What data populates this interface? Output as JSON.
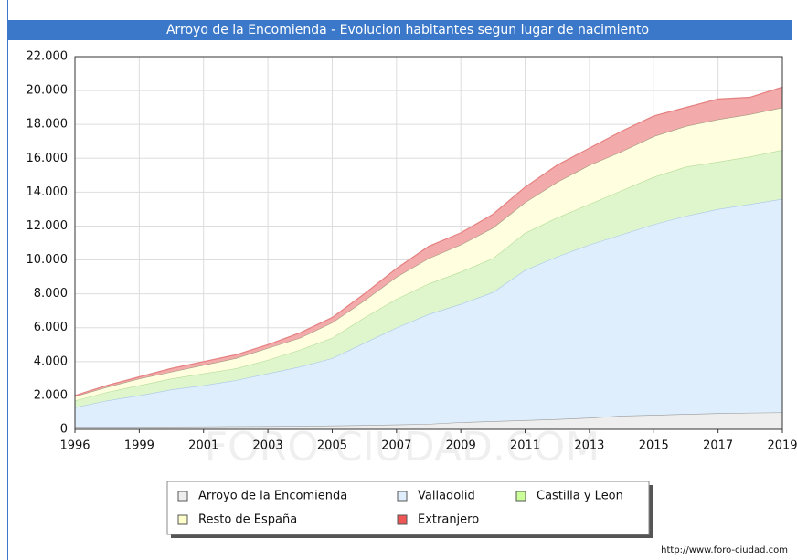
{
  "chart_data": {
    "type": "stacked_area",
    "title": "Arroyo de la Encomienda - Evolucion habitantes segun lugar de nacimiento",
    "watermark": "FORO-CIUDAD.COM",
    "source": "http://www.foro-ciudad.com",
    "categories": [
      "1996",
      null,
      "1999",
      null,
      "2001",
      null,
      "2003",
      null,
      "2005",
      null,
      "2007",
      null,
      "2009",
      null,
      "2011",
      null,
      "2013",
      null,
      "2015",
      null,
      "2017",
      null,
      "2019"
    ],
    "series": [
      {
        "name": "Arroyo de la Encomienda",
        "color": "#eeeeee",
        "line": "#999999",
        "swatch": "#eeeeee",
        "values": [
          150,
          150,
          150,
          160,
          170,
          180,
          190,
          200,
          220,
          250,
          280,
          320,
          420,
          480,
          540,
          600,
          680,
          800,
          850,
          900,
          950,
          980,
          1000
        ]
      },
      {
        "name": "Valladolid",
        "color": "#dfeefc",
        "line": "#a9c8e8",
        "swatch": "#dfeefc",
        "values": [
          1150,
          1550,
          1850,
          2190,
          2430,
          2720,
          3110,
          3500,
          3980,
          4850,
          5720,
          6480,
          6980,
          7620,
          8860,
          9600,
          10220,
          10700,
          11250,
          11700,
          12050,
          12320,
          12600
        ]
      },
      {
        "name": "Castilla y Leon",
        "color": "#dff5cc",
        "line": "#b5dc98",
        "swatch": "#ccff99",
        "values": [
          400,
          500,
          600,
          650,
          700,
          700,
          800,
          1000,
          1200,
          1500,
          1700,
          1800,
          1900,
          2000,
          2200,
          2300,
          2400,
          2600,
          2800,
          2900,
          2800,
          2800,
          2900
        ]
      },
      {
        "name": "Resto de España",
        "color": "#ffffe0",
        "line": "#a09a80",
        "swatch": "#ffffcc",
        "values": [
          250,
          300,
          400,
          400,
          500,
          600,
          700,
          700,
          900,
          1000,
          1300,
          1500,
          1600,
          1800,
          1800,
          2100,
          2300,
          2300,
          2400,
          2400,
          2500,
          2500,
          2500
        ]
      },
      {
        "name": "Extranjero",
        "color": "#f3aaaa",
        "line": "#e58080",
        "swatch": "#ee5555",
        "values": [
          50,
          100,
          100,
          200,
          200,
          200,
          200,
          300,
          300,
          400,
          500,
          700,
          700,
          800,
          900,
          1000,
          1000,
          1200,
          1200,
          1100,
          1200,
          1000,
          1200
        ]
      }
    ],
    "ylim": [
      0,
      22000
    ],
    "yticks": [
      0,
      {
        "value": 2000,
        "label": "2.000"
      },
      {
        "value": 4000,
        "label": "4.000"
      },
      {
        "value": 6000,
        "label": "6.000"
      },
      {
        "value": 8000,
        "label": "8.000"
      },
      {
        "value": 10000,
        "label": "10.000"
      },
      {
        "value": 12000,
        "label": "12.000"
      },
      {
        "value": 14000,
        "label": "14.000"
      },
      {
        "value": 16000,
        "label": "16.000"
      },
      {
        "value": 18000,
        "label": "18.000"
      },
      {
        "value": 20000,
        "label": "20.000"
      },
      {
        "value": 22000,
        "label": "22.000"
      }
    ],
    "grid": true
  }
}
